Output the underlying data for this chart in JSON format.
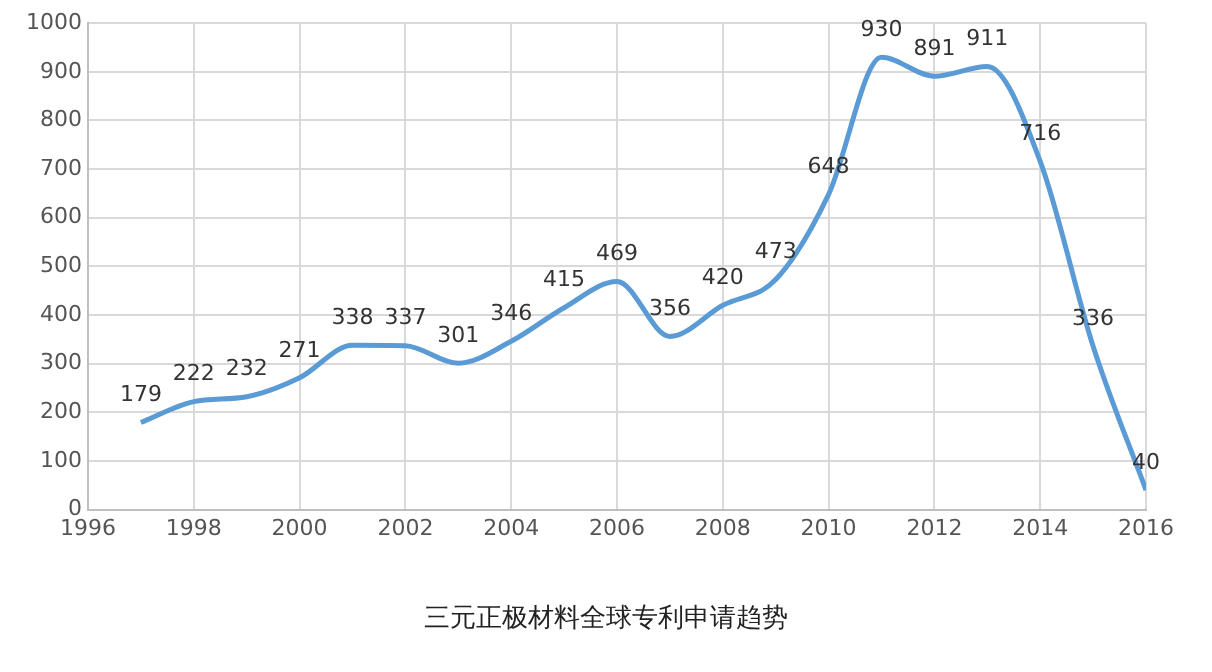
{
  "chart_data": {
    "type": "line",
    "title": "三元正极材料全球专利申请趋势",
    "x": [
      1997,
      1998,
      1999,
      2000,
      2001,
      2002,
      2003,
      2004,
      2005,
      2006,
      2007,
      2008,
      2009,
      2010,
      2011,
      2012,
      2013,
      2014,
      2015,
      2016
    ],
    "series": [
      {
        "color": "#5b9bd5",
        "values": [
          179,
          222,
          232,
          271,
          338,
          337,
          301,
          346,
          415,
          469,
          356,
          420,
          473,
          648,
          930,
          891,
          911,
          716,
          336,
          40
        ]
      }
    ],
    "xlim": [
      1996,
      2016
    ],
    "xticks": [
      1996,
      1998,
      2000,
      2002,
      2004,
      2006,
      2008,
      2010,
      2012,
      2014,
      2016
    ],
    "ylim": [
      0,
      1000
    ],
    "yticks": [
      0,
      100,
      200,
      300,
      400,
      500,
      600,
      700,
      800,
      900,
      1000
    ],
    "grid": true,
    "legend": false,
    "marker": "none",
    "line_style": "solid",
    "data_labels": true
  }
}
